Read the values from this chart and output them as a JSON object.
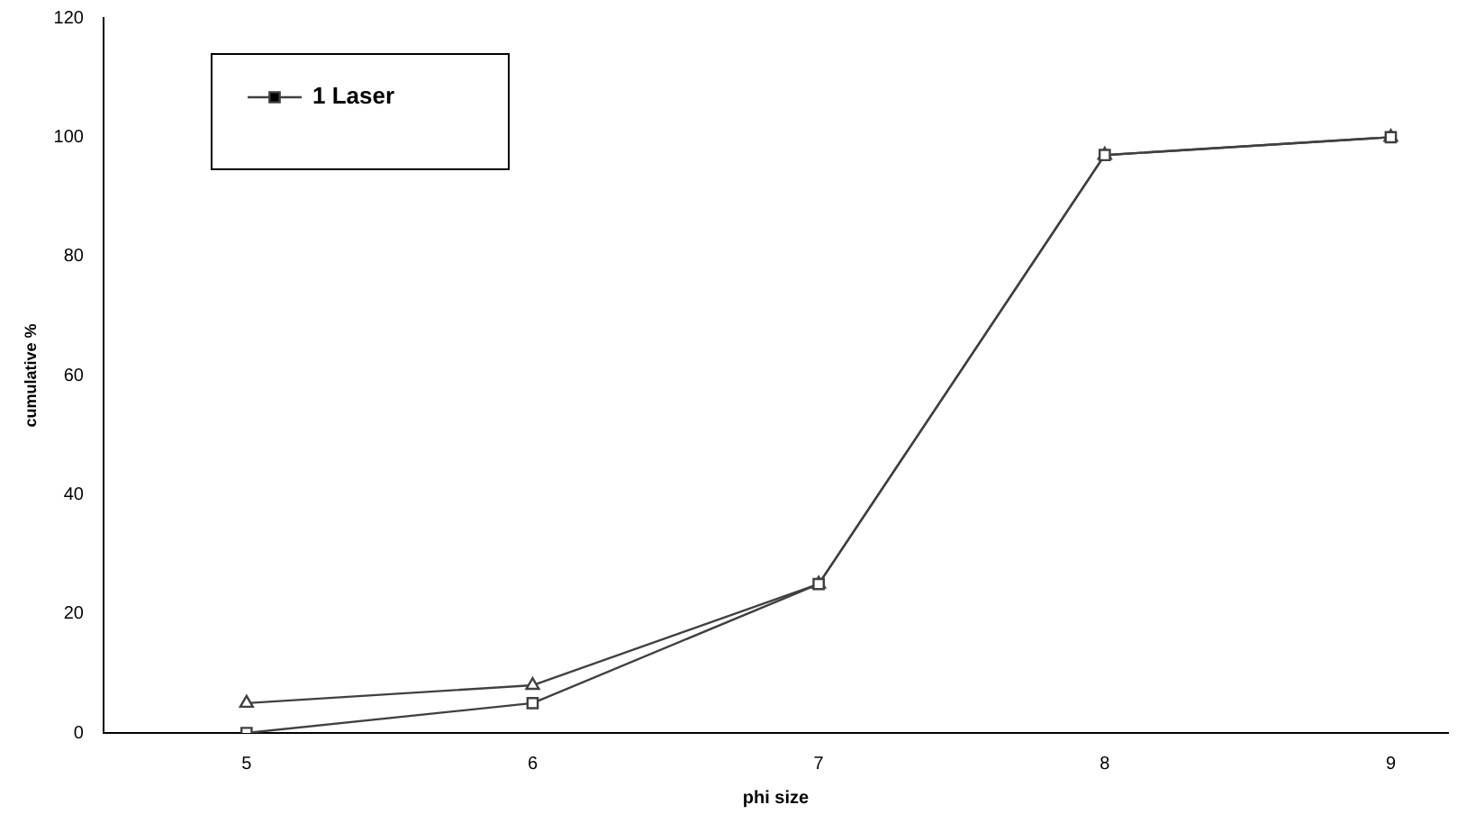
{
  "chart_data": {
    "type": "line",
    "xlabel": "phi size",
    "ylabel": "cumulative %",
    "x": [
      5,
      6,
      7,
      8,
      9
    ],
    "series": [
      {
        "name": "1 Laser",
        "color": "#404040",
        "marker": "square",
        "values": [
          0,
          5,
          25,
          97,
          100
        ]
      },
      {
        "color": "#404040",
        "marker": "triangle",
        "values": [
          5,
          8,
          25,
          97,
          100
        ]
      }
    ],
    "xlim": [
      4.5,
      9.2
    ],
    "xticks": [
      5,
      6,
      7,
      8,
      9
    ],
    "ylim": [
      0,
      120
    ],
    "yticks": [
      0,
      20,
      40,
      60,
      80,
      100,
      120
    ],
    "grid": false,
    "legend": "top left",
    "line_style": "solid"
  }
}
